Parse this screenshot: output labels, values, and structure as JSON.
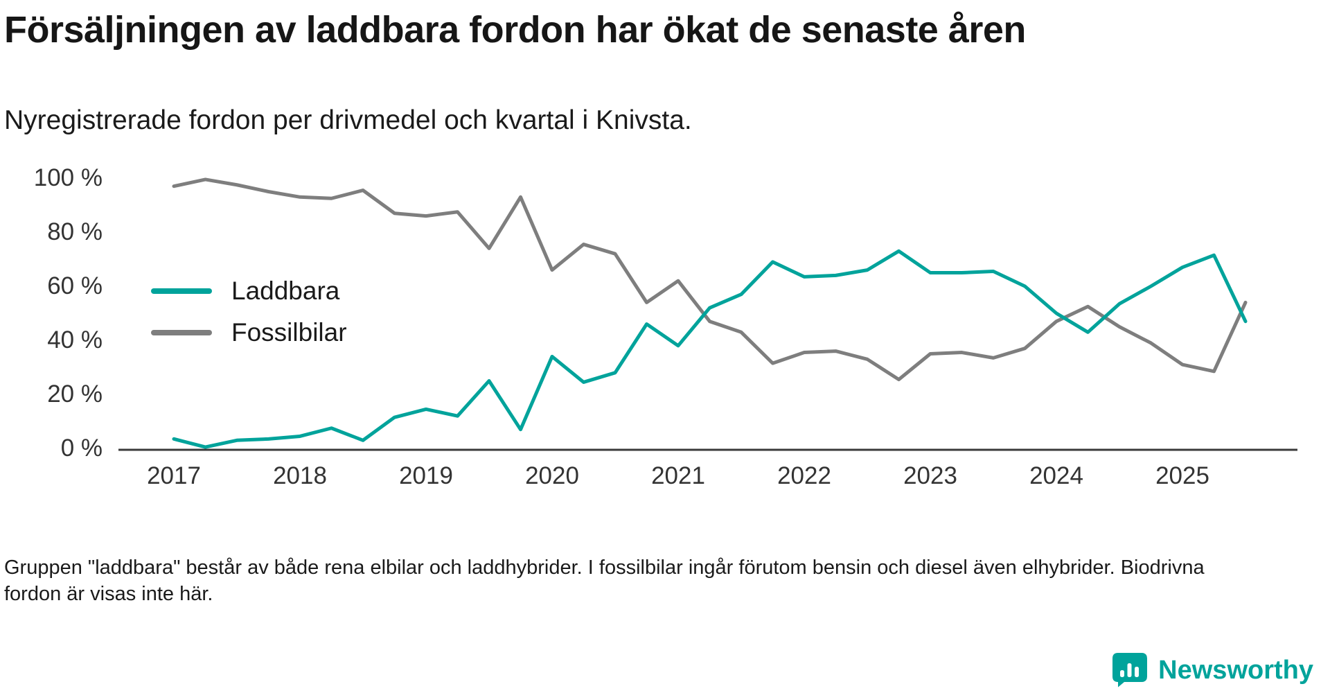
{
  "header": {
    "title": "Försäljningen av laddbara fordon har ökat de senaste åren",
    "subtitle": "Nyregistrerade fordon per drivmedel och kvartal i Knivsta."
  },
  "chart_data": {
    "type": "line",
    "title": "Försäljningen av laddbara fordon har ökat de senaste åren",
    "subtitle": "Nyregistrerade fordon per drivmedel och kvartal i Knivsta.",
    "x_unit": "quarter",
    "grid": false,
    "legend_position": "inside-left",
    "ylim": [
      0,
      100
    ],
    "axis_color": "#3a3a3a",
    "label_color": "#333333",
    "x": [
      "2017 Q1",
      "2017 Q2",
      "2017 Q3",
      "2017 Q4",
      "2018 Q1",
      "2018 Q2",
      "2018 Q3",
      "2018 Q4",
      "2019 Q1",
      "2019 Q2",
      "2019 Q3",
      "2019 Q4",
      "2020 Q1",
      "2020 Q2",
      "2020 Q3",
      "2020 Q4",
      "2021 Q1",
      "2021 Q2",
      "2021 Q3",
      "2021 Q4",
      "2022 Q1",
      "2022 Q2",
      "2022 Q3",
      "2022 Q4",
      "2023 Q1",
      "2023 Q2",
      "2023 Q3",
      "2023 Q4",
      "2024 Q1",
      "2024 Q2",
      "2024 Q3",
      "2024 Q4",
      "2025 Q1",
      "2025 Q2",
      "2025 Q3"
    ],
    "x_tick_labels": [
      "2017",
      "2018",
      "2019",
      "2020",
      "2021",
      "2022",
      "2023",
      "2024",
      "2025"
    ],
    "y_ticks": [
      {
        "value": 0,
        "label": "0 %"
      },
      {
        "value": 20,
        "label": "20 %"
      },
      {
        "value": 40,
        "label": "40 %"
      },
      {
        "value": 60,
        "label": "60 %"
      },
      {
        "value": 80,
        "label": "80 %"
      },
      {
        "value": 100,
        "label": "100 %"
      }
    ],
    "series": [
      {
        "name": "Laddbara",
        "color": "#00a39b",
        "values": [
          3.5,
          0.5,
          3,
          3.5,
          4.5,
          7.5,
          3,
          11.5,
          14.5,
          12,
          25,
          7,
          34,
          24.5,
          28,
          46,
          38,
          52,
          57,
          69,
          63.5,
          64,
          66,
          73,
          65,
          65,
          65.5,
          60,
          50,
          43,
          53.5,
          60,
          67,
          71.5,
          47
        ]
      },
      {
        "name": "Fossilbilar",
        "color": "#7e7e7e",
        "values": [
          97,
          99.5,
          97.5,
          95,
          93,
          92.5,
          95.5,
          87,
          86,
          87.5,
          74,
          93,
          66,
          75.5,
          72,
          54,
          62,
          47,
          43,
          31.5,
          35.5,
          36,
          33,
          25.5,
          35,
          35.5,
          33.5,
          37,
          47,
          52.5,
          45,
          39,
          31,
          28.5,
          54
        ]
      }
    ]
  },
  "footer": {
    "note": "Gruppen \"laddbara\" består av både rena elbilar och laddhybrider. I fossilbilar ingår förutom bensin och diesel även elhybrider. Biodrivna fordon är visas inte här.",
    "brand": "Newsworthy",
    "brand_color": "#00a39b"
  }
}
